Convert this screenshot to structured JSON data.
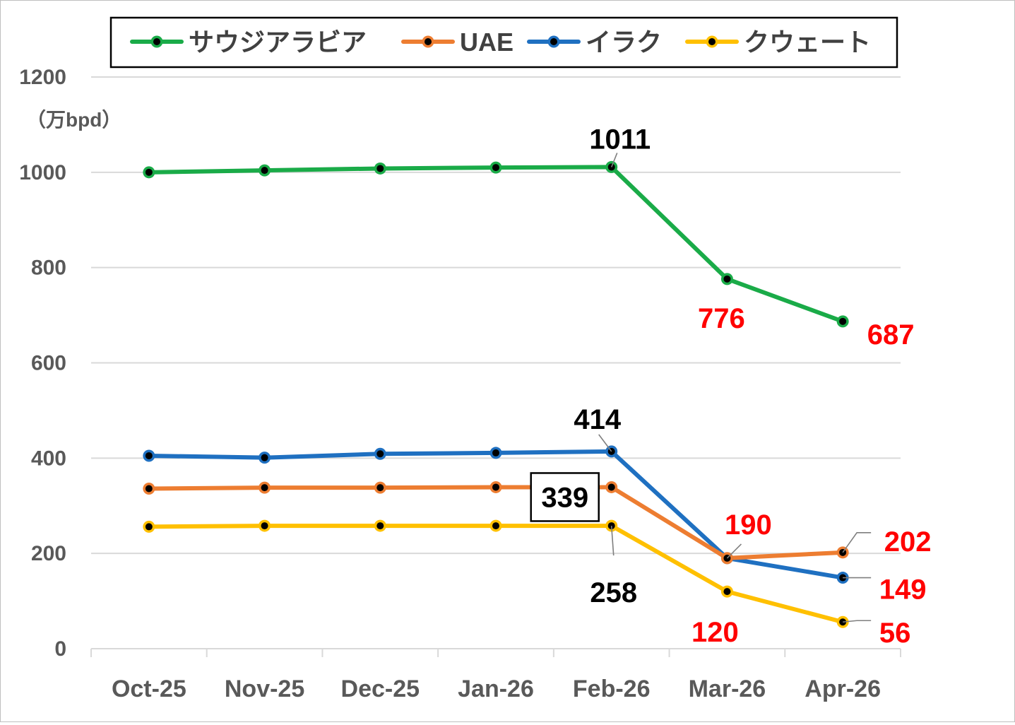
{
  "chart_data": {
    "type": "line",
    "unit_label": "（万bpd）",
    "categories": [
      "Oct-25",
      "Nov-25",
      "Dec-25",
      "Jan-26",
      "Feb-26",
      "Mar-26",
      "Apr-26"
    ],
    "ylim": [
      0,
      1200
    ],
    "yticks": [
      0,
      200,
      400,
      600,
      800,
      1000,
      1200
    ],
    "grid": true,
    "legend_position": "top",
    "series": [
      {
        "name": "サウジアラビア",
        "color": "#1aab48",
        "values": [
          1000,
          1004,
          1008,
          1010,
          1011,
          776,
          687
        ]
      },
      {
        "name": "UAE",
        "color": "#ed7d31",
        "values": [
          336,
          338,
          338,
          339,
          339,
          190,
          202
        ]
      },
      {
        "name": "イラク",
        "color": "#1f70c1",
        "values": [
          405,
          401,
          409,
          411,
          414,
          190,
          149
        ]
      },
      {
        "name": "クウェート",
        "color": "#ffc000",
        "values": [
          256,
          258,
          258,
          258,
          258,
          120,
          56
        ]
      }
    ],
    "data_labels": [
      {
        "series": 0,
        "index": 4,
        "text": "1011",
        "color": "#000000"
      },
      {
        "series": 0,
        "index": 5,
        "text": "776",
        "color": "#ff0000"
      },
      {
        "series": 0,
        "index": 6,
        "text": "687",
        "color": "#ff0000"
      },
      {
        "series": 2,
        "index": 4,
        "text": "414",
        "color": "#000000"
      },
      {
        "series": 1,
        "index": 4,
        "text": "339",
        "color": "#000000",
        "boxed": true
      },
      {
        "series": 3,
        "index": 4,
        "text": "258",
        "color": "#000000"
      },
      {
        "series": 2,
        "index": 5,
        "text": "190",
        "color": "#ff0000"
      },
      {
        "series": 1,
        "index": 6,
        "text": "202",
        "color": "#ff0000"
      },
      {
        "series": 2,
        "index": 6,
        "text": "149",
        "color": "#ff0000"
      },
      {
        "series": 3,
        "index": 5,
        "text": "120",
        "color": "#ff0000"
      },
      {
        "series": 3,
        "index": 6,
        "text": "56",
        "color": "#ff0000"
      }
    ]
  }
}
